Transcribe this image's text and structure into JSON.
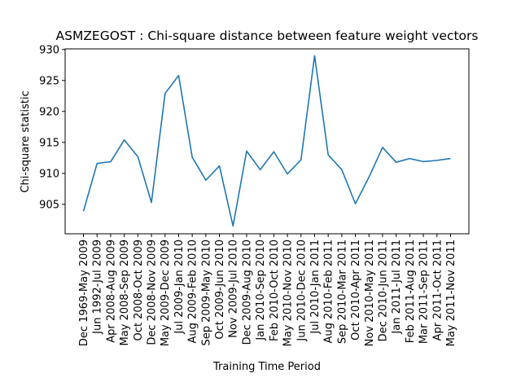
{
  "chart_data": {
    "type": "line",
    "title": "ASMZEGOST : Chi-square distance between feature weight vectors",
    "x_label": "Training Time Period",
    "y_label": "Chi-square statistic",
    "categories": [
      "Dec 1969-May 2009",
      "Jun 1992-Jul 2009",
      "Apr 2008-Aug 2009",
      "May 2008-Sep 2009",
      "Oct 2008-Oct 2009",
      "Dec 2008-Nov 2009",
      "May 2009-Dec 2009",
      "Jul 2009-Jan 2010",
      "Aug 2009-Feb 2010",
      "Sep 2009-May 2010",
      "Oct 2009-Jun 2010",
      "Nov 2009-Jul 2010",
      "Dec 2009-Aug 2010",
      "Jan 2010-Sep 2010",
      "Feb 2010-Oct 2010",
      "May 2010-Nov 2010",
      "Jun 2010-Dec 2010",
      "Jul 2010-Jan 2011",
      "Aug 2010-Feb 2011",
      "Sep 2010-Mar 2011",
      "Oct 2010-Apr 2011",
      "Nov 2010-May 2011",
      "Dec 2010-Jun 2011",
      "Jan 2011-Jul 2011",
      "Feb 2011-Aug 2011",
      "Mar 2011-Sep 2011",
      "Apr 2011-Oct 2011",
      "May 2011-Nov 2011"
    ],
    "series": [
      {
        "name": "Chi-square statistic",
        "color": "#1f77b4",
        "values": [
          903.9,
          911.6,
          911.9,
          915.4,
          912.7,
          905.3,
          922.9,
          925.8,
          912.6,
          908.9,
          911.2,
          901.5,
          913.6,
          910.6,
          913.5,
          909.9,
          912.2,
          929.0,
          913.0,
          910.6,
          905.1,
          909.4,
          914.2,
          911.8,
          912.4,
          911.9,
          912.1,
          912.4
        ]
      }
    ],
    "ylim": [
      900.25,
      930.1
    ],
    "yticks": [
      905,
      910,
      915,
      920,
      925,
      930
    ],
    "grid": false
  }
}
